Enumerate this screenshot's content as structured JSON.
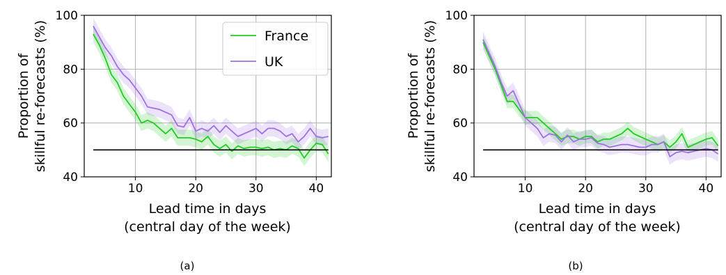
{
  "colors": {
    "france": "#22cc22",
    "uk": "#a070e0",
    "reference": "#000000"
  },
  "chart_data": [
    {
      "type": "line",
      "caption": "(a)",
      "xlabel_line1": "Lead time in days",
      "xlabel_line2": "(central day of the week)",
      "ylabel_line1": "Proportion of",
      "ylabel_line2": "skillful re-forecasts (%)",
      "xlim": [
        1.5,
        42.5
      ],
      "ylim": [
        40,
        100
      ],
      "xticks": [
        10,
        20,
        30,
        40
      ],
      "yticks": [
        40,
        60,
        80,
        100
      ],
      "grid": true,
      "legend": "top-right",
      "reference_line": {
        "x": [
          3,
          42
        ],
        "y": 50
      },
      "x": [
        3,
        4,
        5,
        6,
        7,
        8,
        9,
        10,
        11,
        12,
        13,
        14,
        15,
        16,
        17,
        18,
        19,
        20,
        21,
        22,
        23,
        24,
        25,
        26,
        27,
        28,
        29,
        30,
        31,
        32,
        33,
        34,
        35,
        36,
        37,
        38,
        39,
        40,
        41,
        42
      ],
      "series": [
        {
          "name": "France",
          "color_key": "france",
          "values": [
            93,
            89,
            84,
            78,
            75,
            70,
            67,
            64,
            60,
            61,
            60,
            58,
            56,
            58,
            54.5,
            54.5,
            54.5,
            54,
            53,
            55,
            52,
            50.5,
            52,
            49.5,
            51.5,
            50.5,
            51,
            51,
            50.5,
            51,
            50,
            50.5,
            50,
            51.5,
            50.5,
            47,
            50,
            52.5,
            52,
            48.5
          ],
          "band": 3
        },
        {
          "name": "UK",
          "color_key": "uk",
          "values": [
            96,
            92,
            88,
            85,
            81,
            78,
            76,
            73,
            70,
            66,
            65.5,
            65,
            64,
            63,
            59,
            58.5,
            62,
            57,
            58,
            57,
            59,
            56.5,
            59,
            57,
            55,
            56,
            57,
            58,
            56,
            58,
            58,
            57,
            55,
            56,
            53,
            55,
            58,
            55,
            54.5,
            55
          ],
          "band": 3
        }
      ]
    },
    {
      "type": "line",
      "caption": "(b)",
      "xlabel_line1": "Lead time in days",
      "xlabel_line2": "(central day of the week)",
      "ylabel_line1": "Proportion of",
      "ylabel_line2": "skillful re-forecasts (%)",
      "xlim": [
        1.5,
        42.5
      ],
      "ylim": [
        40,
        100
      ],
      "xticks": [
        10,
        20,
        30,
        40
      ],
      "yticks": [
        40,
        60,
        80,
        100
      ],
      "grid": true,
      "reference_line": {
        "x": [
          3,
          42
        ],
        "y": 50
      },
      "x": [
        3,
        4,
        5,
        6,
        7,
        8,
        9,
        10,
        11,
        12,
        13,
        14,
        15,
        16,
        17,
        18,
        19,
        20,
        21,
        22,
        23,
        24,
        25,
        26,
        27,
        28,
        29,
        30,
        31,
        32,
        33,
        34,
        35,
        36,
        37,
        38,
        39,
        40,
        41,
        42
      ],
      "series": [
        {
          "name": "France",
          "color_key": "france",
          "values": [
            90,
            85,
            80,
            74,
            68,
            68,
            65,
            62,
            62,
            62,
            60,
            58,
            56,
            54,
            55,
            55,
            54,
            55,
            55,
            53,
            54,
            54,
            55,
            56,
            58,
            56,
            55,
            54,
            53,
            52,
            53,
            51,
            53,
            56,
            51,
            52,
            53,
            54,
            54.5,
            51.5
          ],
          "band": 2.5
        },
        {
          "name": "UK",
          "color_key": "uk",
          "values": [
            91,
            86,
            81,
            75,
            70,
            72,
            67,
            62,
            60,
            58,
            54.5,
            56,
            55.5,
            53,
            55.5,
            53,
            54,
            54,
            54.5,
            52.5,
            52,
            51,
            51.5,
            52,
            52,
            51.5,
            51,
            51,
            52,
            52,
            53,
            47.5,
            49,
            49.5,
            49,
            49.5,
            50,
            50.5,
            50,
            48.5
          ],
          "band": 3
        }
      ]
    }
  ]
}
